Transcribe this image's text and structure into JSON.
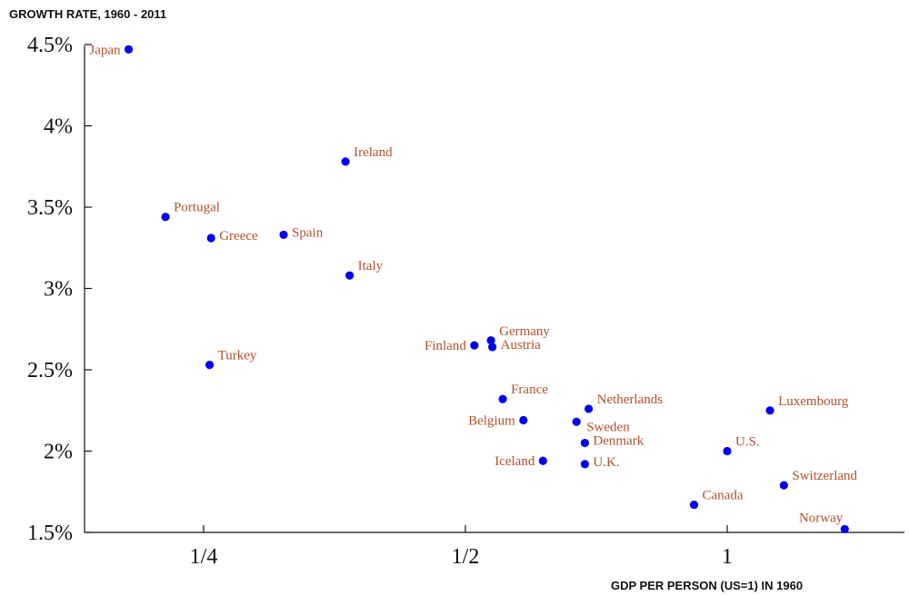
{
  "chart_data": {
    "type": "scatter",
    "title": "",
    "ylabel": "GROWTH RATE, 1960 - 2011",
    "xlabel": "GDP PER PERSON (US=1) IN 1960",
    "x_scale": "log2",
    "xlim": [
      0.182,
      1.37
    ],
    "ylim": [
      1.5,
      4.6
    ],
    "x_ticks": [
      {
        "value": 0.25,
        "label": "1/4"
      },
      {
        "value": 0.5,
        "label": "1/2"
      },
      {
        "value": 1,
        "label": "1"
      }
    ],
    "y_ticks": [
      {
        "value": 1.5,
        "label": "1.5%"
      },
      {
        "value": 2,
        "label": "2%"
      },
      {
        "value": 2.5,
        "label": "2.5%"
      },
      {
        "value": 3,
        "label": "3%"
      },
      {
        "value": 3.5,
        "label": "3.5%"
      },
      {
        "value": 4,
        "label": "4%"
      },
      {
        "value": 4.5,
        "label": "4.5%"
      }
    ],
    "grid": false,
    "marker_color": "#0000ee",
    "label_color": "#b0512a",
    "axis_color": "#111111",
    "points": [
      {
        "name": "Japan",
        "x": 0.205,
        "y": 4.47,
        "label_pos": "left"
      },
      {
        "name": "Portugal",
        "x": 0.226,
        "y": 3.44,
        "label_pos": "right-above"
      },
      {
        "name": "Greece",
        "x": 0.255,
        "y": 3.31,
        "label_pos": "right"
      },
      {
        "name": "Spain",
        "x": 0.309,
        "y": 3.33,
        "label_pos": "right"
      },
      {
        "name": "Ireland",
        "x": 0.364,
        "y": 3.78,
        "label_pos": "right-above"
      },
      {
        "name": "Italy",
        "x": 0.368,
        "y": 3.08,
        "label_pos": "right-above"
      },
      {
        "name": "Turkey",
        "x": 0.254,
        "y": 2.53,
        "label_pos": "right-above"
      },
      {
        "name": "Germany",
        "x": 0.535,
        "y": 2.68,
        "label_pos": "right-above"
      },
      {
        "name": "Austria",
        "x": 0.537,
        "y": 2.64,
        "label_pos": "right"
      },
      {
        "name": "Finland",
        "x": 0.512,
        "y": 2.65,
        "label_pos": "left"
      },
      {
        "name": "France",
        "x": 0.552,
        "y": 2.32,
        "label_pos": "right-above"
      },
      {
        "name": "Belgium",
        "x": 0.583,
        "y": 2.19,
        "label_pos": "left"
      },
      {
        "name": "Netherlands",
        "x": 0.693,
        "y": 2.26,
        "label_pos": "right-above"
      },
      {
        "name": "Sweden",
        "x": 0.671,
        "y": 2.18,
        "label_pos": "right-below"
      },
      {
        "name": "Denmark",
        "x": 0.686,
        "y": 2.05,
        "label_pos": "right"
      },
      {
        "name": "Iceland",
        "x": 0.614,
        "y": 1.94,
        "label_pos": "left"
      },
      {
        "name": "U.K.",
        "x": 0.686,
        "y": 1.92,
        "label_pos": "right"
      },
      {
        "name": "U.S.",
        "x": 1.0,
        "y": 2.0,
        "label_pos": "right-above"
      },
      {
        "name": "Luxembourg",
        "x": 1.12,
        "y": 2.25,
        "label_pos": "right-above"
      },
      {
        "name": "Canada",
        "x": 0.916,
        "y": 1.67,
        "label_pos": "right-above"
      },
      {
        "name": "Switzerland",
        "x": 1.162,
        "y": 1.79,
        "label_pos": "right-above"
      },
      {
        "name": "Norway",
        "x": 1.365,
        "y": 1.52,
        "label_pos": "left-above"
      }
    ]
  }
}
